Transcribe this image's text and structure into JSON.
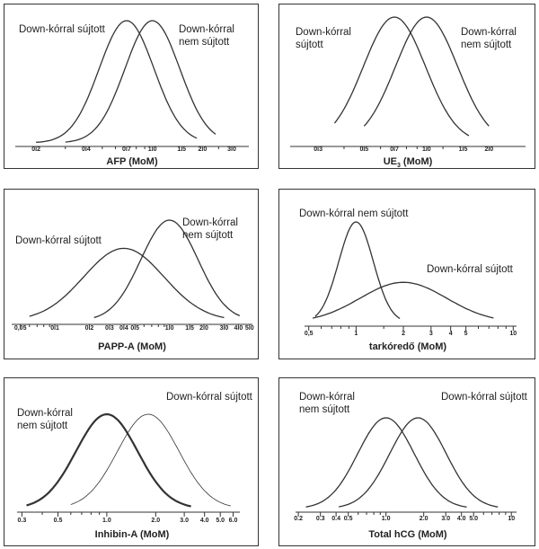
{
  "chart_data": [
    {
      "id": "afp",
      "type": "line",
      "scale": "log",
      "xlabel": "AFP (MoM)",
      "ticks": [
        {
          "v": 0.2,
          "label": "0.2"
        },
        {
          "v": 0.4,
          "label": "0.4"
        },
        {
          "v": 0.7,
          "label": "0.7"
        },
        {
          "v": 1.0,
          "label": "1.0"
        },
        {
          "v": 1.5,
          "label": "1.5"
        },
        {
          "v": 2.0,
          "label": "2.0"
        },
        {
          "v": 3.0,
          "label": "3.0"
        }
      ],
      "minor_ticks": [
        0.3,
        0.5,
        0.6,
        0.8,
        0.9,
        2.5
      ],
      "xlim": [
        0.15,
        3.8
      ],
      "series": [
        {
          "lines": [
            "Down-kórral sújtott"
          ],
          "median": 0.7,
          "sd": 0.33,
          "peak": 1.0,
          "range": [
            0.2,
            1.85
          ],
          "stroke": 1.3
        },
        {
          "lines": [
            "Down-kórral",
            "nem sújtott"
          ],
          "median": 1.0,
          "sd": 0.33,
          "peak": 1.0,
          "range": [
            0.3,
            2.4
          ],
          "stroke": 1.3
        }
      ]
    },
    {
      "id": "ue3",
      "type": "line",
      "scale": "log",
      "xlabel": "UE3 (MoM)",
      "ticks": [
        {
          "v": 0.3,
          "label": "0.3"
        },
        {
          "v": 0.5,
          "label": "0.5"
        },
        {
          "v": 0.7,
          "label": "0.7"
        },
        {
          "v": 1.0,
          "label": "1.0"
        },
        {
          "v": 1.5,
          "label": "1.5"
        },
        {
          "v": 2.0,
          "label": "2.0"
        }
      ],
      "minor_ticks": [
        0.4,
        0.6,
        0.8,
        0.9,
        1.2
      ],
      "xlim": [
        0.22,
        3.0
      ],
      "series": [
        {
          "lines": [
            "Down-kórral",
            "sújtott"
          ],
          "median": 0.7,
          "sd": 0.3,
          "peak": 1.0,
          "range": [
            0.36,
            1.6
          ],
          "stroke": 1.3
        },
        {
          "lines": [
            "Down-kórral",
            "nem sújtott"
          ],
          "median": 1.0,
          "sd": 0.3,
          "peak": 1.0,
          "range": [
            0.5,
            2.0
          ],
          "stroke": 1.3
        }
      ]
    },
    {
      "id": "pappa",
      "type": "line",
      "scale": "log",
      "xlabel": "PAPP-A (MoM)",
      "ticks": [
        {
          "v": 0.05,
          "label": "0,05"
        },
        {
          "v": 0.1,
          "label": "0.1"
        },
        {
          "v": 0.2,
          "label": "0.2"
        },
        {
          "v": 0.3,
          "label": "0.3"
        },
        {
          "v": 0.4,
          "label": "0.4"
        },
        {
          "v": 0.5,
          "label": "0.5"
        },
        {
          "v": 1.0,
          "label": "1.0"
        },
        {
          "v": 1.5,
          "label": "1.5"
        },
        {
          "v": 2.0,
          "label": "2.0"
        },
        {
          "v": 3.0,
          "label": "3.0"
        },
        {
          "v": 4.0,
          "label": "4.0"
        },
        {
          "v": 5.0,
          "label": "5.0"
        }
      ],
      "minor_ticks": [
        0.06,
        0.07,
        0.08,
        0.09,
        0.6,
        0.7,
        0.8,
        0.9
      ],
      "xlim": [
        0.042,
        5.3
      ],
      "series": [
        {
          "lines": [
            "Down-kórral sújtott"
          ],
          "median": 0.4,
          "sd": 0.7,
          "peak": 0.72,
          "range": [
            0.06,
            3.0
          ],
          "stroke": 1.3
        },
        {
          "lines": [
            "Down-kórral",
            "nem sújtott"
          ],
          "median": 1.0,
          "sd": 0.5,
          "peak": 1.0,
          "range": [
            0.22,
            4.1
          ],
          "stroke": 1.3
        }
      ]
    },
    {
      "id": "nt",
      "type": "line",
      "scale": "log",
      "xlabel": "tarkóredő (MoM)",
      "ticks": [
        {
          "v": 0.5,
          "label": "0,5"
        },
        {
          "v": 1,
          "label": "1"
        },
        {
          "v": 2,
          "label": "2"
        },
        {
          "v": 3,
          "label": "3"
        },
        {
          "v": 4,
          "label": "4"
        },
        {
          "v": 5,
          "label": "5"
        },
        {
          "v": 10,
          "label": "10"
        }
      ],
      "minor_ticks": [
        0.6,
        0.7,
        0.8,
        0.9,
        1.5,
        6,
        7,
        8,
        9
      ],
      "xlim": [
        0.47,
        10.5
      ],
      "series": [
        {
          "lines": [
            "Down-kórral nem sújtott"
          ],
          "median": 1.0,
          "sd": 0.22,
          "peak": 1.0,
          "range": [
            0.55,
            1.9
          ],
          "stroke": 1.3
        },
        {
          "lines": [
            "Down-kórral sújtott"
          ],
          "median": 2.0,
          "sd": 0.55,
          "peak": 0.4,
          "range": [
            0.53,
            7.5
          ],
          "stroke": 1.3
        }
      ]
    },
    {
      "id": "inhibin",
      "type": "line",
      "scale": "log",
      "xlabel": "Inhibin-A (MoM)",
      "ticks": [
        {
          "v": 0.3,
          "label": "0.3"
        },
        {
          "v": 0.5,
          "label": "0.5"
        },
        {
          "v": 1.0,
          "label": "1.0"
        },
        {
          "v": 2.0,
          "label": "2.0"
        },
        {
          "v": 3.0,
          "label": "3.0"
        },
        {
          "v": 4.0,
          "label": "4.0"
        },
        {
          "v": 5.0,
          "label": "5.0"
        },
        {
          "v": 6.0,
          "label": "6.0"
        }
      ],
      "minor_ticks": [
        0.4,
        0.6,
        0.7,
        0.8,
        0.9
      ],
      "xlim": [
        0.28,
        6.6
      ],
      "series": [
        {
          "lines": [
            "Down-kórral",
            "nem sújtott"
          ],
          "median": 1.0,
          "sd": 0.38,
          "peak": 1.0,
          "range": [
            0.32,
            3.3
          ],
          "stroke": 2.2
        },
        {
          "lines": [
            "Down-kórral sújtott"
          ],
          "median": 1.8,
          "sd": 0.38,
          "peak": 1.0,
          "range": [
            0.6,
            5.8
          ],
          "stroke": 0.8
        }
      ]
    },
    {
      "id": "hcg",
      "type": "line",
      "scale": "log",
      "xlabel": "Total hCG (MoM)",
      "ticks": [
        {
          "v": 0.2,
          "label": "0.2"
        },
        {
          "v": 0.3,
          "label": "0.3"
        },
        {
          "v": 0.4,
          "label": "0.4"
        },
        {
          "v": 0.5,
          "label": "0.5"
        },
        {
          "v": 1.0,
          "label": "1.0"
        },
        {
          "v": 2.0,
          "label": "2.0"
        },
        {
          "v": 3.0,
          "label": "3.0"
        },
        {
          "v": 4.0,
          "label": "4.0"
        },
        {
          "v": 5.0,
          "label": "5.0"
        },
        {
          "v": 10,
          "label": "10"
        }
      ],
      "minor_ticks": [
        0.6,
        0.7,
        0.8,
        0.9,
        6,
        7,
        8,
        9
      ],
      "xlim": [
        0.19,
        11
      ],
      "series": [
        {
          "lines": [
            "Down-kórral",
            "nem sújtott"
          ],
          "median": 1.0,
          "sd": 0.45,
          "peak": 1.0,
          "range": [
            0.23,
            4.4
          ],
          "stroke": 1.3
        },
        {
          "lines": [
            "Down-kórral sújtott"
          ],
          "median": 1.8,
          "sd": 0.45,
          "peak": 1.0,
          "range": [
            0.42,
            7.8
          ],
          "stroke": 1.3
        }
      ]
    }
  ]
}
